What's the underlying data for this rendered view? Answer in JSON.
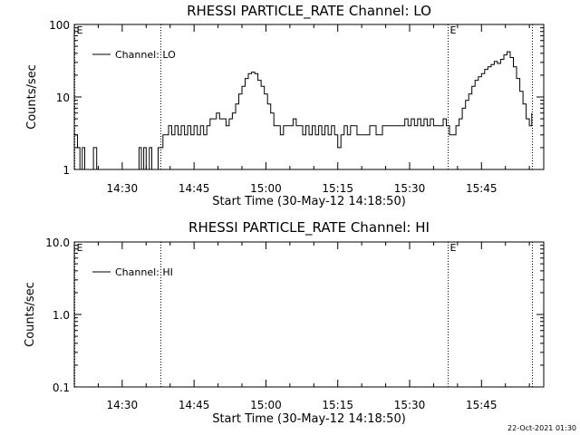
{
  "chart_data": [
    {
      "type": "line",
      "title": "RHESSI PARTICLE_RATE Channel: LO",
      "xlabel": "Start Time (30-May-12 14:18:50)",
      "ylabel": "Counts/sec",
      "y_scale": "log",
      "ylim": [
        1,
        100
      ],
      "xlim": [
        "14:20:00",
        "15:58:00"
      ],
      "y_ticks": [
        "1",
        "10",
        "100"
      ],
      "x_ticks": [
        "14:30",
        "14:45",
        "15:00",
        "15:15",
        "15:30",
        "15:45"
      ],
      "legend": {
        "position": "top-left",
        "entries": [
          "Channel: LO"
        ]
      },
      "markers": [
        {
          "label": "E",
          "time": "14:20:00"
        },
        {
          "label": "",
          "time": "14:38:00"
        },
        {
          "label": "E",
          "time": "15:38:00"
        },
        {
          "label": "",
          "time": "15:55:30"
        }
      ],
      "series": [
        {
          "name": "Channel: LO",
          "points": [
            [
              "14:20:00",
              3
            ],
            [
              "14:20:40",
              2
            ],
            [
              "14:21:10",
              1
            ],
            [
              "14:21:40",
              2
            ],
            [
              "14:22:10",
              1
            ],
            [
              "14:23:00",
              1
            ],
            [
              "14:24:00",
              2
            ],
            [
              "14:24:40",
              1
            ],
            [
              "14:25:30",
              1
            ],
            [
              "14:33:00",
              1
            ],
            [
              "14:33:30",
              2
            ],
            [
              "14:34:00",
              1
            ],
            [
              "14:34:30",
              2
            ],
            [
              "14:35:00",
              1
            ],
            [
              "14:35:40",
              2
            ],
            [
              "14:36:10",
              1
            ],
            [
              "14:37:00",
              1
            ],
            [
              "14:37:30",
              2
            ],
            [
              "14:38:00",
              2
            ],
            [
              "14:38:30",
              3
            ],
            [
              "14:39:10",
              3
            ],
            [
              "14:39:40",
              4
            ],
            [
              "14:40:20",
              3
            ],
            [
              "14:41:00",
              4
            ],
            [
              "14:41:40",
              3
            ],
            [
              "14:42:20",
              4
            ],
            [
              "14:43:00",
              3
            ],
            [
              "14:43:40",
              4
            ],
            [
              "14:44:20",
              3
            ],
            [
              "14:45:00",
              4
            ],
            [
              "14:45:40",
              3
            ],
            [
              "14:46:20",
              4
            ],
            [
              "14:47:00",
              3
            ],
            [
              "14:47:40",
              4
            ],
            [
              "14:48:20",
              5
            ],
            [
              "14:49:00",
              5
            ],
            [
              "14:49:40",
              6
            ],
            [
              "14:50:20",
              5
            ],
            [
              "14:51:00",
              5
            ],
            [
              "14:51:40",
              4
            ],
            [
              "14:52:20",
              5
            ],
            [
              "14:53:00",
              6
            ],
            [
              "14:53:40",
              8
            ],
            [
              "14:54:20",
              11
            ],
            [
              "14:55:00",
              14
            ],
            [
              "14:55:40",
              18
            ],
            [
              "14:56:20",
              21
            ],
            [
              "14:57:00",
              22
            ],
            [
              "14:57:40",
              21
            ],
            [
              "14:58:20",
              17
            ],
            [
              "14:59:00",
              14
            ],
            [
              "14:59:40",
              11
            ],
            [
              "15:00:20",
              8
            ],
            [
              "15:01:00",
              6
            ],
            [
              "15:01:40",
              4
            ],
            [
              "15:02:20",
              4
            ],
            [
              "15:03:00",
              3
            ],
            [
              "15:03:40",
              4
            ],
            [
              "15:04:20",
              4
            ],
            [
              "15:05:00",
              4
            ],
            [
              "15:05:40",
              5
            ],
            [
              "15:06:20",
              4
            ],
            [
              "15:07:00",
              4
            ],
            [
              "15:07:40",
              3
            ],
            [
              "15:08:20",
              4
            ],
            [
              "15:09:00",
              3
            ],
            [
              "15:09:40",
              4
            ],
            [
              "15:10:20",
              3
            ],
            [
              "15:11:00",
              4
            ],
            [
              "15:11:40",
              3
            ],
            [
              "15:12:20",
              4
            ],
            [
              "15:13:00",
              3
            ],
            [
              "15:13:40",
              4
            ],
            [
              "15:14:20",
              3
            ],
            [
              "15:15:00",
              2
            ],
            [
              "15:15:40",
              3
            ],
            [
              "15:16:20",
              4
            ],
            [
              "15:17:00",
              3
            ],
            [
              "15:17:40",
              4
            ],
            [
              "15:18:20",
              4
            ],
            [
              "15:19:00",
              3
            ],
            [
              "15:19:40",
              3
            ],
            [
              "15:20:20",
              3
            ],
            [
              "15:21:00",
              3
            ],
            [
              "15:21:40",
              4
            ],
            [
              "15:22:20",
              4
            ],
            [
              "15:23:00",
              3
            ],
            [
              "15:23:40",
              3
            ],
            [
              "15:24:20",
              4
            ],
            [
              "15:25:00",
              4
            ],
            [
              "15:25:40",
              4
            ],
            [
              "15:26:20",
              4
            ],
            [
              "15:27:00",
              4
            ],
            [
              "15:27:40",
              4
            ],
            [
              "15:28:20",
              4
            ],
            [
              "15:29:00",
              5
            ],
            [
              "15:29:40",
              4
            ],
            [
              "15:30:20",
              5
            ],
            [
              "15:31:00",
              4
            ],
            [
              "15:31:40",
              5
            ],
            [
              "15:32:20",
              4
            ],
            [
              "15:33:00",
              5
            ],
            [
              "15:33:40",
              4
            ],
            [
              "15:34:20",
              5
            ],
            [
              "15:35:00",
              4
            ],
            [
              "15:35:40",
              4
            ],
            [
              "15:36:20",
              4
            ],
            [
              "15:37:00",
              5
            ],
            [
              "15:37:40",
              4
            ],
            [
              "15:38:20",
              3
            ],
            [
              "15:39:00",
              3
            ],
            [
              "15:39:40",
              4
            ],
            [
              "15:40:20",
              5
            ],
            [
              "15:41:00",
              7
            ],
            [
              "15:41:40",
              9
            ],
            [
              "15:42:20",
              11
            ],
            [
              "15:43:00",
              14
            ],
            [
              "15:43:40",
              17
            ],
            [
              "15:44:20",
              19
            ],
            [
              "15:45:00",
              21
            ],
            [
              "15:45:40",
              24
            ],
            [
              "15:46:20",
              26
            ],
            [
              "15:47:00",
              28
            ],
            [
              "15:47:40",
              31
            ],
            [
              "15:48:20",
              29
            ],
            [
              "15:49:00",
              33
            ],
            [
              "15:49:40",
              38
            ],
            [
              "15:50:20",
              42
            ],
            [
              "15:51:00",
              35
            ],
            [
              "15:51:40",
              26
            ],
            [
              "15:52:20",
              18
            ],
            [
              "15:53:00",
              12
            ],
            [
              "15:53:40",
              8
            ],
            [
              "15:54:20",
              5
            ],
            [
              "15:55:00",
              4
            ],
            [
              "15:55:30",
              6
            ]
          ]
        }
      ]
    },
    {
      "type": "line",
      "title": "RHESSI PARTICLE_RATE Channel: HI",
      "xlabel": "Start Time (30-May-12 14:18:50)",
      "ylabel": "Counts/sec",
      "y_scale": "log",
      "ylim": [
        0.1,
        10
      ],
      "xlim": [
        "14:20:00",
        "15:58:00"
      ],
      "y_ticks": [
        "0.1",
        "1.0",
        "10.0"
      ],
      "x_ticks": [
        "14:30",
        "14:45",
        "15:00",
        "15:15",
        "15:30",
        "15:45"
      ],
      "legend": {
        "position": "top-left",
        "entries": [
          "Channel: HI"
        ]
      },
      "markers": [
        {
          "label": "E",
          "time": "14:20:00"
        },
        {
          "label": "",
          "time": "14:38:00"
        },
        {
          "label": "E",
          "time": "15:38:00"
        },
        {
          "label": "",
          "time": "15:55:30"
        }
      ],
      "series": [
        {
          "name": "Channel: HI",
          "points": []
        }
      ]
    }
  ],
  "footer": {
    "timestamp": "22-Oct-2021 01:30"
  }
}
